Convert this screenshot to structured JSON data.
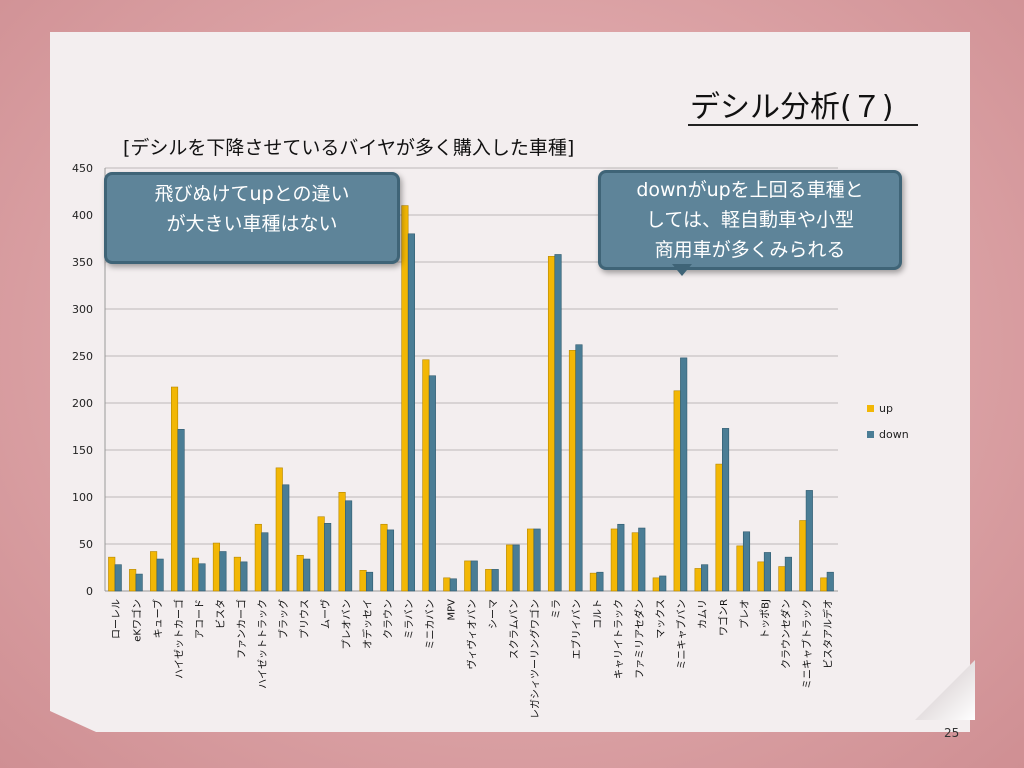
{
  "slide": {
    "title": "デシル分析(７)",
    "subtitle": "[デシルを下降させているバイヤが多く購入した車種]",
    "callout_left": [
      "飛びぬけてupとの違い",
      "が大きい車種はない"
    ],
    "callout_right": [
      "downがupを上回る車種と",
      "しては、軽自動車や小型",
      "商用車が多くみられる"
    ],
    "page_number": "25"
  },
  "colors": {
    "up": "#f2b705",
    "down": "#4a7d95"
  },
  "chart_data": {
    "type": "bar",
    "title": "",
    "xlabel": "",
    "ylabel": "",
    "ylim": [
      0,
      450
    ],
    "yticks": [
      0,
      50,
      100,
      150,
      200,
      250,
      300,
      350,
      400,
      450
    ],
    "grid": true,
    "legend_position": "right",
    "categories": [
      "ローレル",
      "eKワゴン",
      "キューブ",
      "ハイゼットカーゴ",
      "アコード",
      "ビスタ",
      "ファンカーゴ",
      "ハイゼットトラック",
      "ブラッグ",
      "プリウス",
      "ムーヴ",
      "プレオバン",
      "オデッセイ",
      "クラウン",
      "ミラバン",
      "ミニカバン",
      "MPV",
      "ヴィヴィオバン",
      "シーマ",
      "スクラムバン",
      "レガシィツーリングワゴン",
      "ミラ",
      "エブリイバン",
      "コルト",
      "キャリイトラック",
      "ファミリアセダン",
      "マックス",
      "ミニキャブバン",
      "カムリ",
      "ワゴンR",
      "プレオ",
      "トッポBJ",
      "クラウンセダン",
      "ミニキャブトラック",
      "ビスタアルデオ"
    ],
    "series": [
      {
        "name": "up",
        "values": [
          36,
          23,
          42,
          217,
          35,
          51,
          36,
          71,
          131,
          38,
          79,
          105,
          22,
          71,
          410,
          246,
          14,
          32,
          23,
          49,
          66,
          356,
          256,
          19,
          66,
          62,
          14,
          213,
          24,
          135,
          48,
          31,
          26,
          75,
          14
        ]
      },
      {
        "name": "down",
        "values": [
          28,
          18,
          34,
          172,
          29,
          42,
          31,
          62,
          113,
          34,
          72,
          96,
          20,
          65,
          380,
          229,
          13,
          32,
          23,
          49,
          66,
          358,
          262,
          20,
          71,
          67,
          16,
          248,
          28,
          173,
          63,
          41,
          36,
          107,
          20
        ]
      }
    ]
  }
}
